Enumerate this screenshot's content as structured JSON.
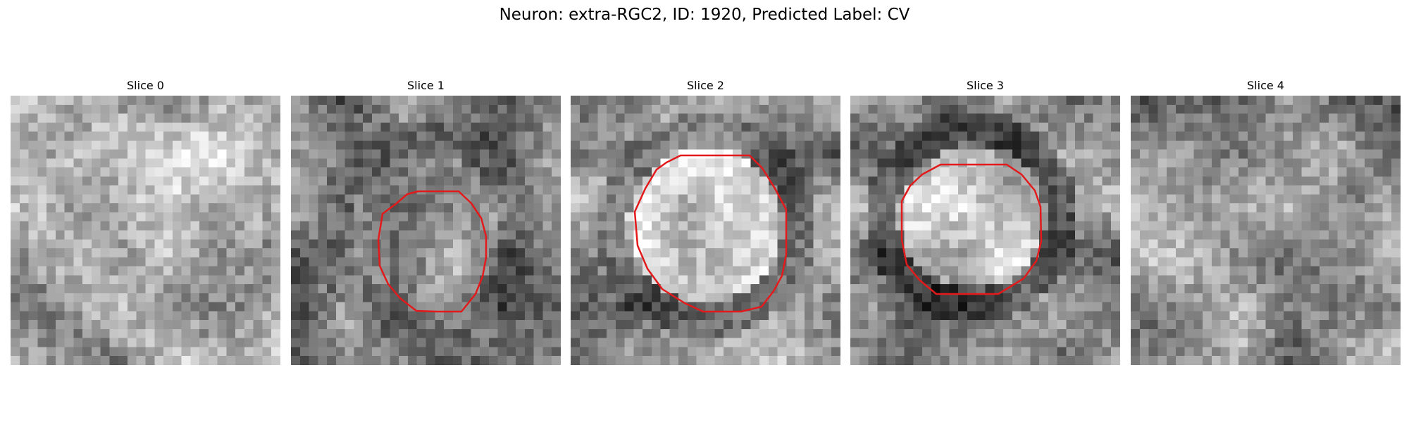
{
  "figure": {
    "title": "Neuron: extra-RGC2, ID: 1920, Predicted Label: CV"
  },
  "contour_color": "#e31a1c",
  "panels": [
    {
      "title": "Slice 0",
      "has_contour": false
    },
    {
      "title": "Slice 1",
      "has_contour": true
    },
    {
      "title": "Slice 2",
      "has_contour": true
    },
    {
      "title": "Slice 3",
      "has_contour": true
    },
    {
      "title": "Slice 4",
      "has_contour": false
    }
  ]
}
